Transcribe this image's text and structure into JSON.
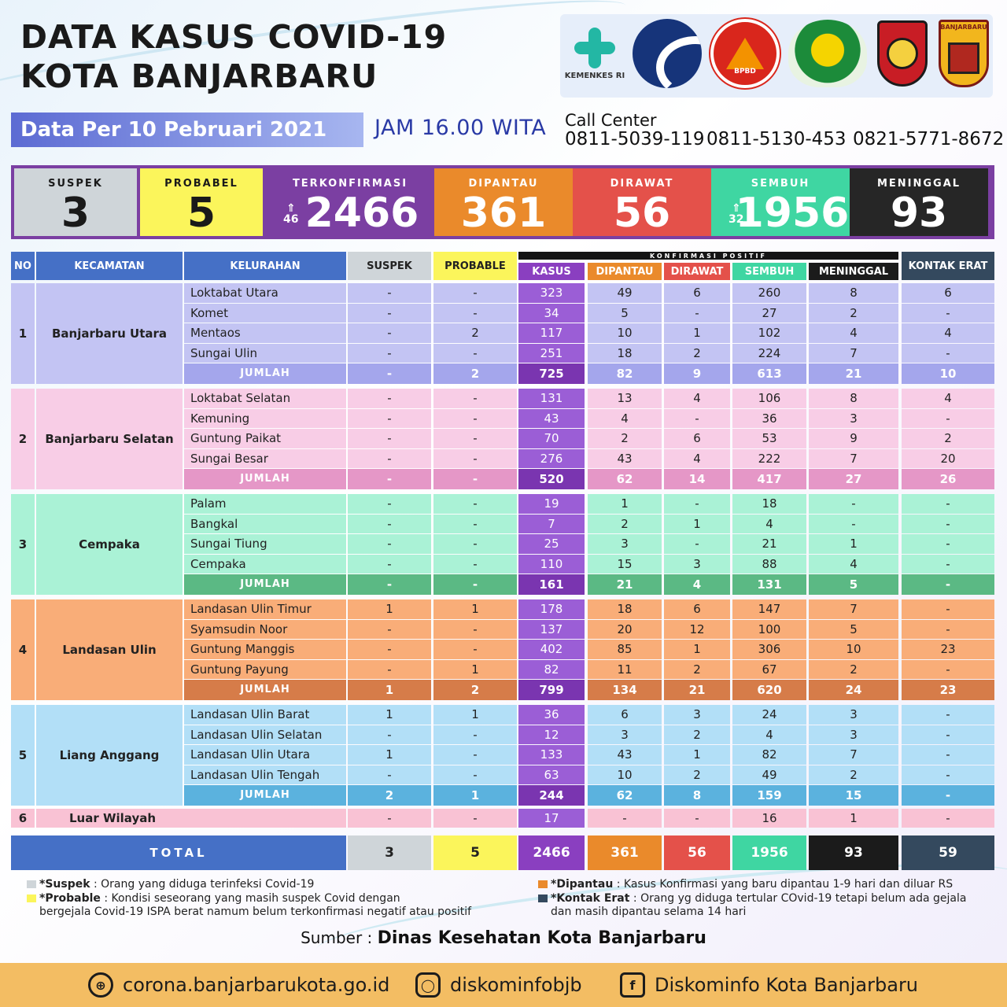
{
  "title_line1": "DATA KASUS COVID-19",
  "title_line2": "KOTA BANJARBARU",
  "logos": {
    "kemenkes": "KEMENKES RI",
    "bpbd": "BPBD",
    "bjb": "BANJARBARU"
  },
  "date_label": "Data Per 10 Pebruari 2021",
  "time_label": "JAM 16.00 WITA",
  "call_center": {
    "label": "Call Center",
    "numbers": [
      "0811-5039-119",
      "0811-5130-453",
      "0821-5771-8672"
    ]
  },
  "summary": [
    {
      "label": "SUSPEK",
      "value": "3",
      "bg": "#cfd5d9",
      "fg": "#1a1a1a",
      "inc": ""
    },
    {
      "label": "PROBABEL",
      "value": "5",
      "bg": "#fbf55b",
      "fg": "#1a1a1a",
      "inc": ""
    },
    {
      "label": "TERKONFIRMASI",
      "value": "2466",
      "bg": "#7b3fa2",
      "fg": "#ffffff",
      "inc": "46"
    },
    {
      "label": "DIPANTAU",
      "value": "361",
      "bg": "#ea8a2b",
      "fg": "#ffffff",
      "inc": ""
    },
    {
      "label": "DIRAWAT",
      "value": "56",
      "bg": "#e4514a",
      "fg": "#ffffff",
      "inc": ""
    },
    {
      "label": "SEMBUH",
      "value": "1956",
      "bg": "#3fd6a2",
      "fg": "#ffffff",
      "inc": "32"
    },
    {
      "label": "MENINGGAL",
      "value": "93",
      "bg": "#262626",
      "fg": "#ffffff",
      "inc": ""
    }
  ],
  "table": {
    "headers": {
      "no": "NO",
      "kecamatan": "KECAMATAN",
      "kelurahan": "KELURAHAN",
      "suspek": "SUSPEK",
      "probable": "PROBABLE",
      "konfirmasi_group": "KONFIRMASI POSITIF",
      "kasus": "KASUS",
      "dipantau": "DIPANTAU",
      "dirawat": "DIRAWAT",
      "sembuh": "SEMBUH",
      "meninggal": "MENINGGAL",
      "kontak_erat": "KONTAK ERAT"
    },
    "groups": [
      {
        "no": "1",
        "kecamatan": "Banjarbaru Utara",
        "bg": "#c3c4f3",
        "sum_bg": "#a4a6ec",
        "kasus_bg": "#9b5ed6",
        "rows": [
          [
            "Loktabat Utara",
            "-",
            "-",
            "323",
            "49",
            "6",
            "260",
            "8",
            "6"
          ],
          [
            "Komet",
            "-",
            "-",
            "34",
            "5",
            "-",
            "27",
            "2",
            "-"
          ],
          [
            "Mentaos",
            "-",
            "2",
            "117",
            "10",
            "1",
            "102",
            "4",
            "4"
          ],
          [
            "Sungai Ulin",
            "-",
            "-",
            "251",
            "18",
            "2",
            "224",
            "7",
            "-"
          ]
        ],
        "total": [
          "JUMLAH",
          "-",
          "2",
          "725",
          "82",
          "9",
          "613",
          "21",
          "10"
        ]
      },
      {
        "no": "2",
        "kecamatan": "Banjarbaru Selatan",
        "bg": "#f8cde6",
        "sum_bg": "#e597c7",
        "kasus_bg": "#9b5ed6",
        "rows": [
          [
            "Loktabat Selatan",
            "-",
            "-",
            "131",
            "13",
            "4",
            "106",
            "8",
            "4"
          ],
          [
            "Kemuning",
            "-",
            "-",
            "43",
            "4",
            "-",
            "36",
            "3",
            "-"
          ],
          [
            "Guntung Paikat",
            "-",
            "-",
            "70",
            "2",
            "6",
            "53",
            "9",
            "2"
          ],
          [
            "Sungai Besar",
            "-",
            "-",
            "276",
            "43",
            "4",
            "222",
            "7",
            "20"
          ]
        ],
        "total": [
          "JUMLAH",
          "-",
          "-",
          "520",
          "62",
          "14",
          "417",
          "27",
          "26"
        ]
      },
      {
        "no": "3",
        "kecamatan": "Cempaka",
        "bg": "#aaf2d6",
        "sum_bg": "#5bb984",
        "kasus_bg": "#9b5ed6",
        "rows": [
          [
            "Palam",
            "-",
            "-",
            "19",
            "1",
            "-",
            "18",
            "-",
            "-"
          ],
          [
            "Bangkal",
            "-",
            "-",
            "7",
            "2",
            "1",
            "4",
            "-",
            "-"
          ],
          [
            "Sungai Tiung",
            "-",
            "-",
            "25",
            "3",
            "-",
            "21",
            "1",
            "-"
          ],
          [
            "Cempaka",
            "-",
            "-",
            "110",
            "15",
            "3",
            "88",
            "4",
            "-"
          ]
        ],
        "total": [
          "JUMLAH",
          "-",
          "-",
          "161",
          "21",
          "4",
          "131",
          "5",
          "-"
        ]
      },
      {
        "no": "4",
        "kecamatan": "Landasan Ulin",
        "bg": "#f9ad78",
        "sum_bg": "#d67c49",
        "kasus_bg": "#9b5ed6",
        "rows": [
          [
            "Landasan Ulin Timur",
            "1",
            "1",
            "178",
            "18",
            "6",
            "147",
            "7",
            "-"
          ],
          [
            "Syamsudin Noor",
            "-",
            "-",
            "137",
            "20",
            "12",
            "100",
            "5",
            "-"
          ],
          [
            "Guntung Manggis",
            "-",
            "-",
            "402",
            "85",
            "1",
            "306",
            "10",
            "23"
          ],
          [
            "Guntung Payung",
            "-",
            "1",
            "82",
            "11",
            "2",
            "67",
            "2",
            "-"
          ]
        ],
        "total": [
          "JUMLAH",
          "1",
          "2",
          "799",
          "134",
          "21",
          "620",
          "24",
          "23"
        ]
      },
      {
        "no": "5",
        "kecamatan": "Liang Anggang",
        "bg": "#b2dff7",
        "sum_bg": "#5bb2de",
        "kasus_bg": "#9b5ed6",
        "rows": [
          [
            "Landasan Ulin Barat",
            "1",
            "1",
            "36",
            "6",
            "3",
            "24",
            "3",
            "-"
          ],
          [
            "Landasan Ulin Selatan",
            "-",
            "-",
            "12",
            "3",
            "2",
            "4",
            "3",
            "-"
          ],
          [
            "Landasan Ulin Utara",
            "1",
            "-",
            "133",
            "43",
            "1",
            "82",
            "7",
            "-"
          ],
          [
            "Landasan Ulin Tengah",
            "-",
            "-",
            "63",
            "10",
            "2",
            "49",
            "2",
            "-"
          ]
        ],
        "total": [
          "JUMLAH",
          "2",
          "1",
          "244",
          "62",
          "8",
          "159",
          "15",
          "-"
        ]
      }
    ],
    "luar": {
      "no": "6",
      "kecamatan": "Luar Wilayah",
      "values": [
        "-",
        "-",
        "17",
        "-",
        "-",
        "16",
        "1",
        "-"
      ]
    },
    "grand_total": {
      "label": "TOTAL",
      "values": [
        "3",
        "5",
        "2466",
        "361",
        "56",
        "1956",
        "93",
        "59"
      ]
    }
  },
  "legend": {
    "suspek_term": "*Suspek",
    "suspek_desc": " : Orang yang diduga terinfeksi Covid-19",
    "probable_term": "*Probable",
    "probable_desc1": " : Kondisi seseorang yang masih suspek Covid dengan",
    "probable_desc2": "bergejala Covid-19 ISPA berat namum belum terkonfirmasi negatif atau positif",
    "dipantau_term": "*Dipantau",
    "dipantau_desc": " : Kasus Konfirmasi yang baru dipantau 1-9 hari dan diluar RS",
    "kontak_term": "*Kontak Erat",
    "kontak_desc1": " : Orang yg diduga tertular COvid-19 tetapi belum ada gejala",
    "kontak_desc2": "dan masih dipantau selama 14 hari"
  },
  "source": {
    "label": "Sumber : ",
    "value": "Dinas Kesehatan Kota Banjarbaru"
  },
  "footer": {
    "website": "corona.banjarbarukota.go.id",
    "instagram": "diskominfobjb",
    "facebook": "Diskominfo Kota Banjarbaru"
  }
}
